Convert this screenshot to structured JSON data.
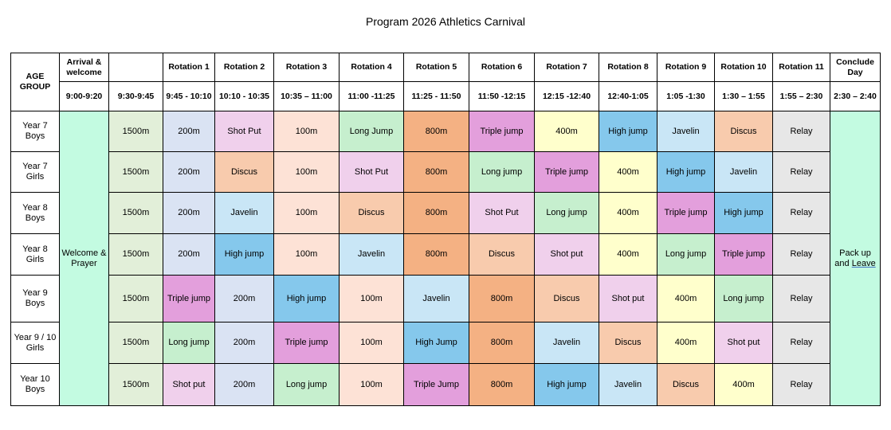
{
  "title": "Program 2026 Athletics Carnival",
  "header": {
    "age_group": "AGE GROUP",
    "arrival": "Arrival & welcome",
    "arrival_time": "9:00-9:20",
    "warmup_time": "9:30-9:45",
    "rotations": [
      {
        "label": "Rotation 1",
        "time": "9:45 - 10:10"
      },
      {
        "label": "Rotation 2",
        "time": "10:10 - 10:35"
      },
      {
        "label": "Rotation 3",
        "time": "10:35 – 11:00"
      },
      {
        "label": "Rotation 4",
        "time": "11:00 -11:25"
      },
      {
        "label": "Rotation 5",
        "time": "11:25 - 11:50"
      },
      {
        "label": "Rotation 6",
        "time": "11:50 -12:15"
      },
      {
        "label": "Rotation 7",
        "time": "12:15 -12:40"
      },
      {
        "label": "Rotation 8",
        "time": "12:40-1:05"
      },
      {
        "label": "Rotation 9",
        "time": "1:05 -1:30"
      },
      {
        "label": "Rotation 10",
        "time": "1:30 – 1:55"
      },
      {
        "label": "Rotation 11",
        "time": "1:55 – 2:30"
      }
    ],
    "conclude": "Conclude Day",
    "conclude_time": "2:30 – 2:40"
  },
  "welcome_text": "Welcome & Prayer",
  "pack_text_1": "Pack up and ",
  "pack_text_2": "Leave",
  "colors": {
    "200m": "#dae3f3",
    "Shot Put": "#f0d0ec",
    "100m": "#fde2d6",
    "Long Jump": "#c6efce",
    "800m": "#f4b183",
    "Triple jump": "#e39fdc",
    "400m": "#ffffcc",
    "High jump": "#85c8ec",
    "Javelin": "#c9e6f6",
    "Discus": "#f8cbad",
    "Relay": "#e7e7e7",
    "1500m": "#e2efd9",
    "welcome": "#c3fbe1"
  },
  "rows": [
    {
      "group": "Year 7 Boys",
      "warmup": "1500m",
      "events": [
        {
          "text": "200m",
          "kind": "200m"
        },
        {
          "text": "Shot Put",
          "kind": "Shot Put"
        },
        {
          "text": "100m",
          "kind": "100m"
        },
        {
          "text": "Long Jump",
          "kind": "Long Jump"
        },
        {
          "text": "800m",
          "kind": "800m"
        },
        {
          "text": "Triple jump",
          "kind": "Triple jump"
        },
        {
          "text": "400m",
          "kind": "400m"
        },
        {
          "text": "High jump",
          "kind": "High jump"
        },
        {
          "text": "Javelin",
          "kind": "Javelin"
        },
        {
          "text": "Discus",
          "kind": "Discus"
        },
        {
          "text": "Relay",
          "kind": "Relay"
        }
      ]
    },
    {
      "group": "Year 7 Girls",
      "warmup": "1500m",
      "events": [
        {
          "text": "200m",
          "kind": "200m"
        },
        {
          "text": "Discus",
          "kind": "Discus"
        },
        {
          "text": "100m",
          "kind": "100m"
        },
        {
          "text": "Shot Put",
          "kind": "Shot Put"
        },
        {
          "text": "800m",
          "kind": "800m"
        },
        {
          "text": "Long jump",
          "kind": "Long Jump"
        },
        {
          "text": "Triple jump",
          "kind": "Triple jump"
        },
        {
          "text": "400m",
          "kind": "400m"
        },
        {
          "text": "High jump",
          "kind": "High jump"
        },
        {
          "text": "Javelin",
          "kind": "Javelin"
        },
        {
          "text": "Relay",
          "kind": "Relay"
        }
      ]
    },
    {
      "group": "Year 8 Boys",
      "warmup": "1500m",
      "events": [
        {
          "text": "200m",
          "kind": "200m"
        },
        {
          "text": "Javelin",
          "kind": "Javelin"
        },
        {
          "text": "100m",
          "kind": "100m"
        },
        {
          "text": "Discus",
          "kind": "Discus"
        },
        {
          "text": "800m",
          "kind": "800m"
        },
        {
          "text": "Shot Put",
          "kind": "Shot Put"
        },
        {
          "text": "Long jump",
          "kind": "Long Jump"
        },
        {
          "text": "400m",
          "kind": "400m"
        },
        {
          "text": "Triple jump",
          "kind": "Triple jump"
        },
        {
          "text": "High jump",
          "kind": "High jump"
        },
        {
          "text": "Relay",
          "kind": "Relay"
        }
      ]
    },
    {
      "group": "Year 8 Girls",
      "warmup": "1500m",
      "events": [
        {
          "text": "200m",
          "kind": "200m"
        },
        {
          "text": "High jump",
          "kind": "High jump"
        },
        {
          "text": "100m",
          "kind": "100m"
        },
        {
          "text": "Javelin",
          "kind": "Javelin"
        },
        {
          "text": "800m",
          "kind": "800m"
        },
        {
          "text": "Discus",
          "kind": "Discus"
        },
        {
          "text": "Shot put",
          "kind": "Shot Put"
        },
        {
          "text": "400m",
          "kind": "400m"
        },
        {
          "text": "Long jump",
          "kind": "Long Jump"
        },
        {
          "text": "Triple jump",
          "kind": "Triple jump"
        },
        {
          "text": "Relay",
          "kind": "Relay"
        }
      ]
    },
    {
      "group": "Year 9 Boys",
      "warmup": "1500m",
      "events": [
        {
          "text": "Triple jump",
          "kind": "Triple jump"
        },
        {
          "text": "200m",
          "kind": "200m"
        },
        {
          "text": "High jump",
          "kind": "High jump"
        },
        {
          "text": "100m",
          "kind": "100m"
        },
        {
          "text": "Javelin",
          "kind": "Javelin"
        },
        {
          "text": "800m",
          "kind": "800m"
        },
        {
          "text": "Discus",
          "kind": "Discus"
        },
        {
          "text": "Shot put",
          "kind": "Shot Put"
        },
        {
          "text": "400m",
          "kind": "400m"
        },
        {
          "text": "Long jump",
          "kind": "Long Jump"
        },
        {
          "text": "Relay",
          "kind": "Relay"
        }
      ]
    },
    {
      "group": "Year 9 / 10 Girls",
      "warmup": "1500m",
      "events": [
        {
          "text": "Long jump",
          "kind": "Long Jump"
        },
        {
          "text": "200m",
          "kind": "200m"
        },
        {
          "text": "Triple jump",
          "kind": "Triple jump"
        },
        {
          "text": "100m",
          "kind": "100m"
        },
        {
          "text": "High Jump",
          "kind": "High jump"
        },
        {
          "text": "800m",
          "kind": "800m"
        },
        {
          "text": "Javelin",
          "kind": "Javelin"
        },
        {
          "text": "Discus",
          "kind": "Discus"
        },
        {
          "text": "400m",
          "kind": "400m"
        },
        {
          "text": "Shot put",
          "kind": "Shot Put"
        },
        {
          "text": "Relay",
          "kind": "Relay"
        }
      ]
    },
    {
      "group": "Year 10 Boys",
      "warmup": "1500m",
      "events": [
        {
          "text": "Shot put",
          "kind": "Shot Put"
        },
        {
          "text": "200m",
          "kind": "200m"
        },
        {
          "text": "Long jump",
          "kind": "Long Jump"
        },
        {
          "text": "100m",
          "kind": "100m"
        },
        {
          "text": "Triple Jump",
          "kind": "Triple jump"
        },
        {
          "text": "800m",
          "kind": "800m"
        },
        {
          "text": "High jump",
          "kind": "High jump"
        },
        {
          "text": "Javelin",
          "kind": "Javelin"
        },
        {
          "text": "Discus",
          "kind": "Discus"
        },
        {
          "text": "400m",
          "kind": "400m"
        },
        {
          "text": "Relay",
          "kind": "Relay"
        }
      ]
    }
  ]
}
